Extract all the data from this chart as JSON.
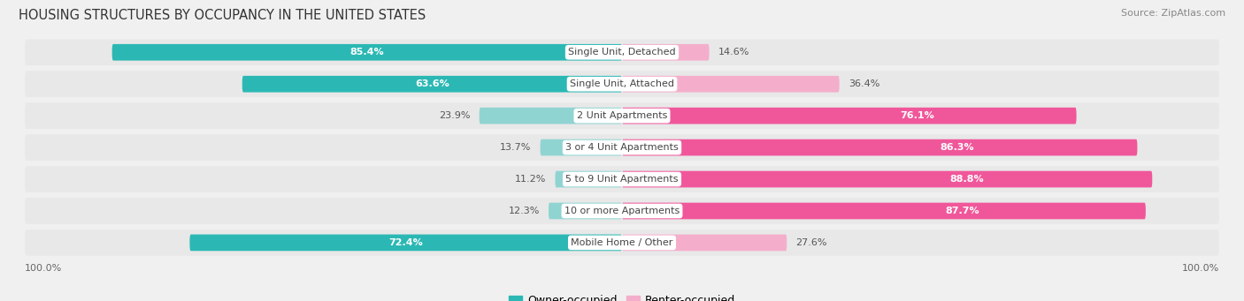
{
  "title": "HOUSING STRUCTURES BY OCCUPANCY IN THE UNITED STATES",
  "source": "Source: ZipAtlas.com",
  "categories": [
    "Single Unit, Detached",
    "Single Unit, Attached",
    "2 Unit Apartments",
    "3 or 4 Unit Apartments",
    "5 to 9 Unit Apartments",
    "10 or more Apartments",
    "Mobile Home / Other"
  ],
  "owner_pct": [
    85.4,
    63.6,
    23.9,
    13.7,
    11.2,
    12.3,
    72.4
  ],
  "renter_pct": [
    14.6,
    36.4,
    76.1,
    86.3,
    88.8,
    87.7,
    27.6
  ],
  "owner_color_strong": "#2BB8B4",
  "owner_color_light": "#90D4D2",
  "renter_color_strong": "#F0579A",
  "renter_color_light": "#F4AECB",
  "background_color": "#f0f0f0",
  "bar_background": "#dcdcdc",
  "row_bg_color": "#e8e8e8",
  "title_fontsize": 10.5,
  "source_fontsize": 8,
  "label_fontsize": 8,
  "value_fontsize": 8,
  "legend_fontsize": 9,
  "axis_label": "100.0%"
}
